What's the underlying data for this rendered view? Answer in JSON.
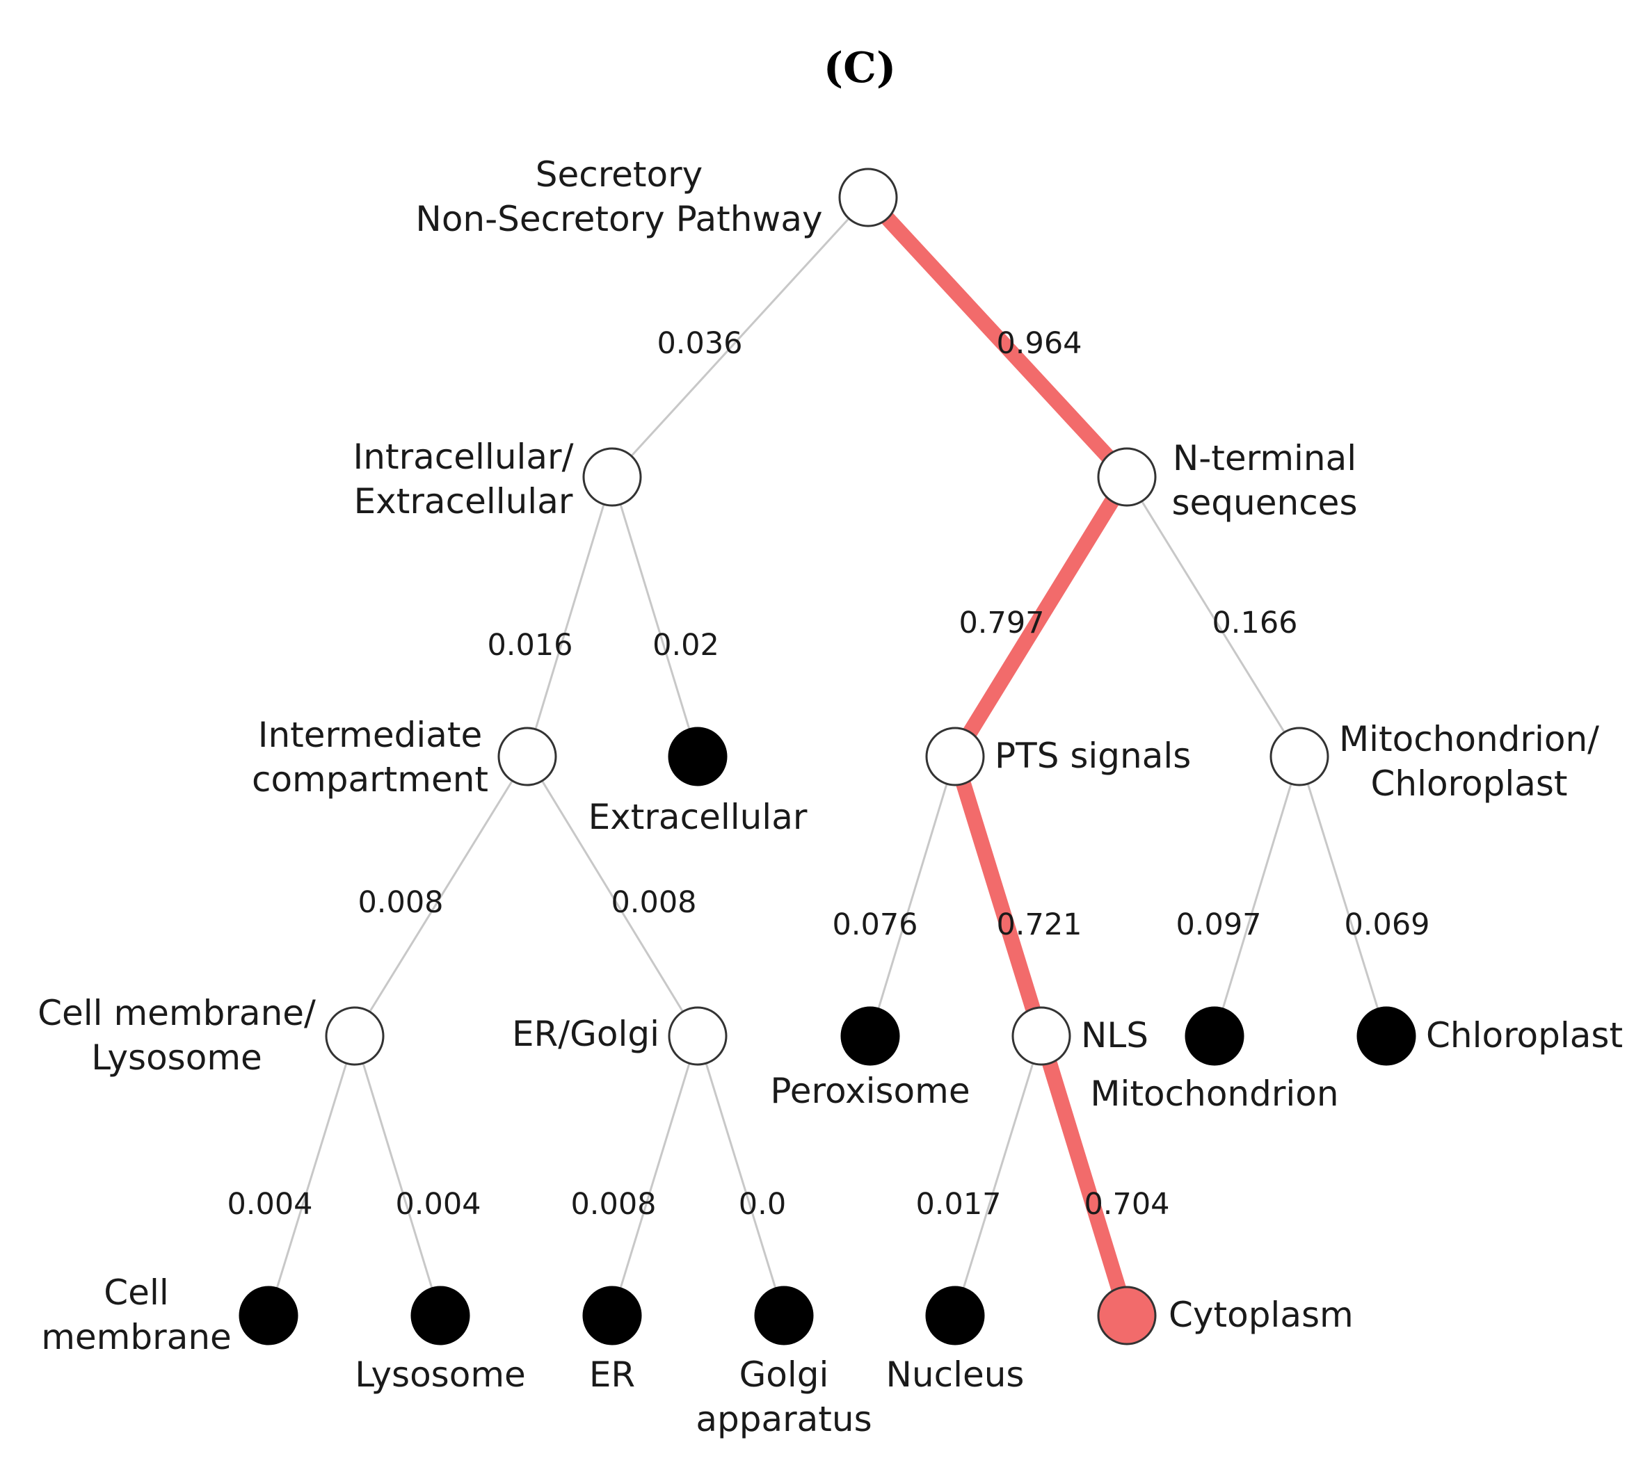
{
  "title": "(C)",
  "colors": {
    "highlight": "#f26b6b",
    "edge": "#c8c8c8",
    "node_open_fill": "#ffffff",
    "node_leaf_fill": "#000000",
    "node_stroke": "#333333"
  },
  "nodes": [
    {
      "id": "root",
      "lines": [
        "Secretory",
        "Non-Secretory Pathway"
      ],
      "kind": "open"
    },
    {
      "id": "intra",
      "lines": [
        "Intracellular/",
        "Extracellular"
      ],
      "kind": "open"
    },
    {
      "id": "nterm",
      "lines": [
        "N-terminal",
        "sequences"
      ],
      "kind": "open"
    },
    {
      "id": "inter",
      "lines": [
        "Intermediate",
        "compartment"
      ],
      "kind": "open"
    },
    {
      "id": "extra",
      "lines": [
        "Extracellular"
      ],
      "kind": "leaf"
    },
    {
      "id": "pts",
      "lines": [
        "PTS signals"
      ],
      "kind": "open"
    },
    {
      "id": "mito_chloro",
      "lines": [
        "Mitochondrion/",
        "Chloroplast"
      ],
      "kind": "open"
    },
    {
      "id": "cell_lyso",
      "lines": [
        "Cell membrane/",
        "Lysosome"
      ],
      "kind": "open"
    },
    {
      "id": "er_golgi",
      "lines": [
        "ER/Golgi"
      ],
      "kind": "open"
    },
    {
      "id": "perox",
      "lines": [
        "Peroxisome"
      ],
      "kind": "leaf"
    },
    {
      "id": "nls",
      "lines": [
        "NLS"
      ],
      "kind": "open"
    },
    {
      "id": "mito",
      "lines": [
        "Mitochondrion"
      ],
      "kind": "leaf"
    },
    {
      "id": "chloro",
      "lines": [
        "Chloroplast"
      ],
      "kind": "leaf"
    },
    {
      "id": "cellmem",
      "lines": [
        "Cell",
        "membrane"
      ],
      "kind": "leaf"
    },
    {
      "id": "lyso",
      "lines": [
        "Lysosome"
      ],
      "kind": "leaf"
    },
    {
      "id": "er",
      "lines": [
        "ER"
      ],
      "kind": "leaf"
    },
    {
      "id": "golgi",
      "lines": [
        "Golgi",
        "apparatus"
      ],
      "kind": "leaf"
    },
    {
      "id": "nucleus",
      "lines": [
        "Nucleus"
      ],
      "kind": "leaf"
    },
    {
      "id": "cyto",
      "lines": [
        "Cytoplasm"
      ],
      "kind": "leaf-highlight"
    }
  ],
  "edges": [
    {
      "from": "root",
      "to": "intra",
      "label": "0.036",
      "highlight": false
    },
    {
      "from": "root",
      "to": "nterm",
      "label": "0.964",
      "highlight": true
    },
    {
      "from": "intra",
      "to": "inter",
      "label": "0.016",
      "highlight": false
    },
    {
      "from": "intra",
      "to": "extra",
      "label": "0.02",
      "highlight": false
    },
    {
      "from": "nterm",
      "to": "pts",
      "label": "0.797",
      "highlight": true
    },
    {
      "from": "nterm",
      "to": "mito_chloro",
      "label": "0.166",
      "highlight": false
    },
    {
      "from": "inter",
      "to": "cell_lyso",
      "label": "0.008",
      "highlight": false
    },
    {
      "from": "inter",
      "to": "er_golgi",
      "label": "0.008",
      "highlight": false
    },
    {
      "from": "pts",
      "to": "perox",
      "label": "0.076",
      "highlight": false
    },
    {
      "from": "pts",
      "to": "nls",
      "label": "0.721",
      "highlight": true
    },
    {
      "from": "mito_chloro",
      "to": "mito",
      "label": "0.097",
      "highlight": false
    },
    {
      "from": "mito_chloro",
      "to": "chloro",
      "label": "0.069",
      "highlight": false
    },
    {
      "from": "cell_lyso",
      "to": "cellmem",
      "label": "0.004",
      "highlight": false
    },
    {
      "from": "cell_lyso",
      "to": "lyso",
      "label": "0.004",
      "highlight": false
    },
    {
      "from": "er_golgi",
      "to": "er",
      "label": "0.008",
      "highlight": false
    },
    {
      "from": "er_golgi",
      "to": "golgi",
      "label": "0.0",
      "highlight": false
    },
    {
      "from": "nls",
      "to": "nucleus",
      "label": "0.017",
      "highlight": false
    },
    {
      "from": "nls",
      "to": "cyto",
      "label": "0.704",
      "highlight": true
    }
  ]
}
